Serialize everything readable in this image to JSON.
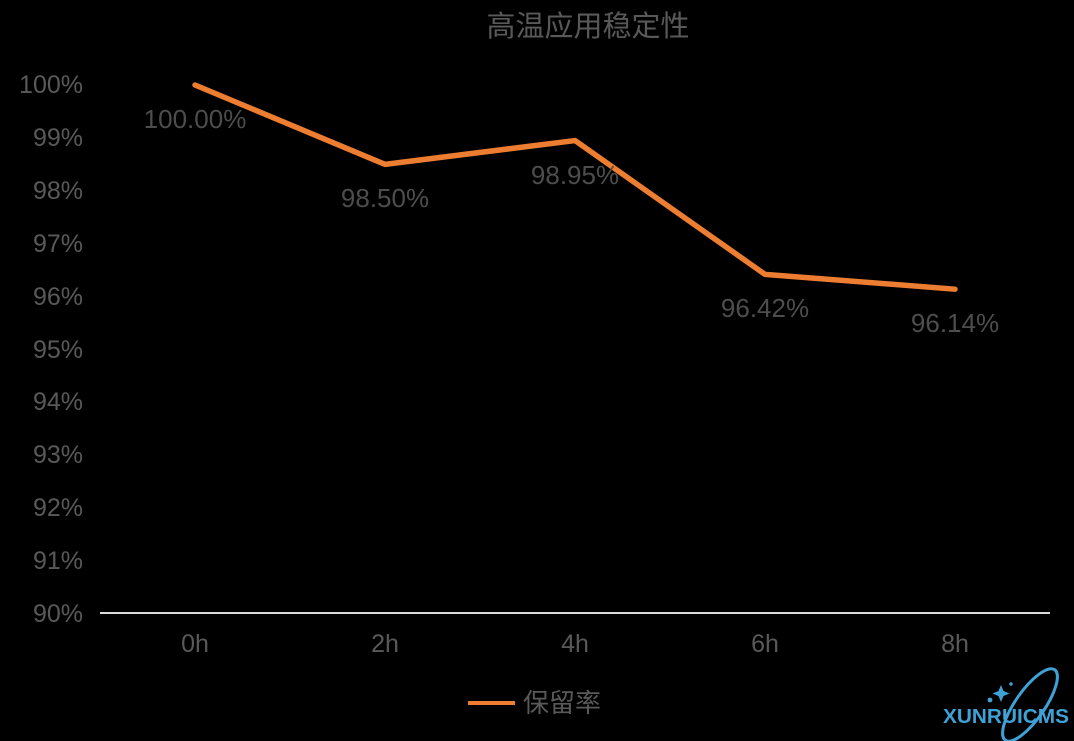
{
  "page": {
    "background": "#000000"
  },
  "colors": {
    "background": "#000000",
    "text": "#595959",
    "label": "#4d4d4d",
    "accent": "#ED7D31",
    "axis": "#D9D9D9",
    "watermark": "#3FA2D6"
  },
  "chart_data": {
    "type": "line",
    "title": "高温应用稳定性",
    "categories": [
      "0h",
      "2h",
      "4h",
      "6h",
      "8h"
    ],
    "series": [
      {
        "name": "保留率",
        "values": [
          100.0,
          98.5,
          98.95,
          96.42,
          96.14
        ],
        "color": "#ED7D31"
      }
    ],
    "data_labels": [
      "100.00%",
      "98.50%",
      "98.95%",
      "96.42%",
      "96.14%"
    ],
    "xlabel": "",
    "ylabel": "",
    "ylim": [
      90,
      100
    ],
    "ytick_labels": [
      "100%",
      "99%",
      "98%",
      "97%",
      "96%",
      "95%",
      "94%",
      "93%",
      "92%",
      "91%",
      "90%"
    ],
    "grid": false,
    "legend": {
      "position": "bottom",
      "entries": [
        {
          "label": "保留率",
          "color": "#ED7D31"
        }
      ]
    }
  },
  "watermark": {
    "text": "XUNRUICMS"
  }
}
